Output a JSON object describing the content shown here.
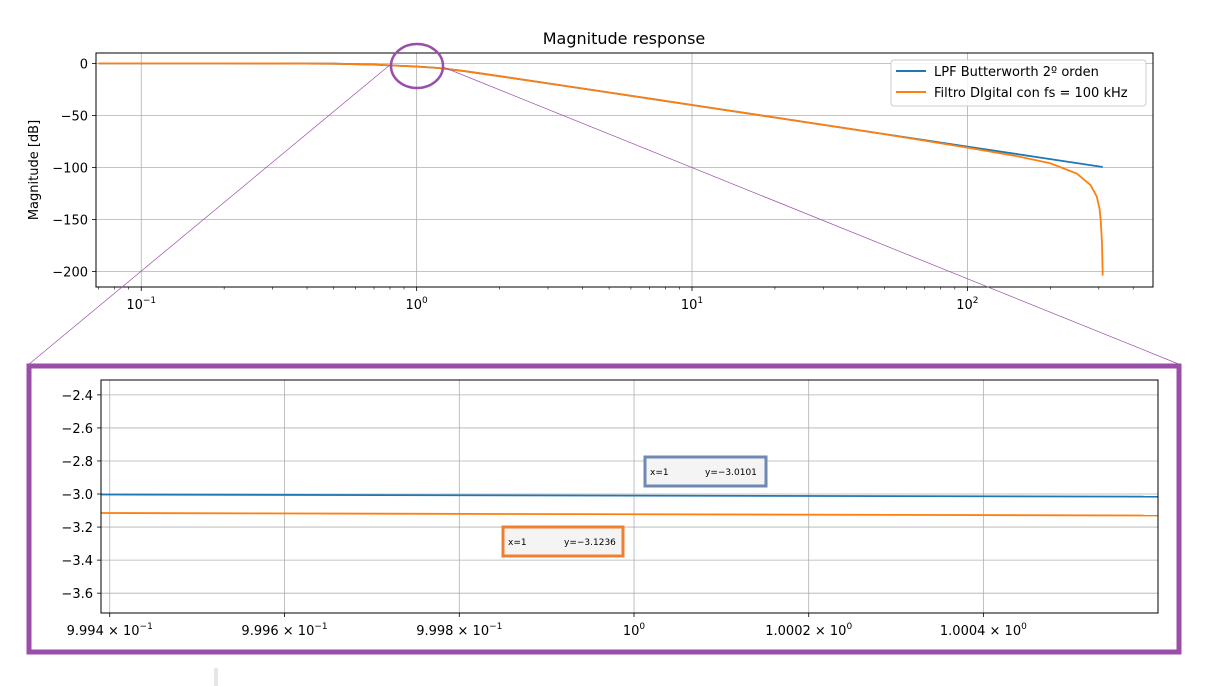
{
  "chart_data": [
    {
      "type": "line",
      "title": "Magnitude response",
      "xlabel": "",
      "ylabel": "Magnitude [dB]",
      "x_scale": "log",
      "xlim": [
        0.0685,
        472
      ],
      "ylim": [
        -215,
        10
      ],
      "grid": true,
      "legend_position": "top-right",
      "x_ticks": [
        {
          "value": 0.1,
          "base": "10",
          "exp": "−1"
        },
        {
          "value": 1,
          "base": "10",
          "exp": "0"
        },
        {
          "value": 10,
          "base": "10",
          "exp": "1"
        },
        {
          "value": 100,
          "base": "10",
          "exp": "2"
        }
      ],
      "y_ticks": [
        {
          "value": 0,
          "label": "0"
        },
        {
          "value": -50,
          "label": "−50"
        },
        {
          "value": -100,
          "label": "−100"
        },
        {
          "value": -150,
          "label": "−150"
        },
        {
          "value": -200,
          "label": "−200"
        }
      ],
      "series": [
        {
          "name": "LPF Butterworth 2º orden",
          "color": "#1f77b4",
          "x": [
            0.07,
            0.1,
            0.2,
            0.3,
            0.5,
            0.7,
            0.8,
            1,
            1.2,
            1.5,
            2,
            3,
            5,
            7,
            10,
            20,
            50,
            100,
            200,
            310
          ],
          "y": [
            0,
            0,
            -0.01,
            -0.03,
            -0.26,
            -1.2,
            -1.9,
            -3.01,
            -4.4,
            -7.5,
            -12.3,
            -19.2,
            -28,
            -33.8,
            -40,
            -52,
            -68,
            -80,
            -92,
            -99.6
          ]
        },
        {
          "name": "Filtro DIgital con fs = 100 kHz",
          "color": "#ff7f0e",
          "x": [
            0.07,
            0.1,
            0.2,
            0.3,
            0.5,
            0.7,
            0.8,
            1,
            1.2,
            1.5,
            2,
            3,
            5,
            7,
            10,
            20,
            50,
            100,
            150,
            200,
            250,
            280,
            295,
            302,
            305,
            308,
            310
          ],
          "y": [
            0,
            0,
            -0.01,
            -0.03,
            -0.26,
            -1.2,
            -1.9,
            -3.12,
            -4.4,
            -7.5,
            -12.3,
            -19.2,
            -28,
            -33.8,
            -40,
            -52,
            -68,
            -81,
            -89,
            -96,
            -106,
            -117,
            -128,
            -140,
            -152,
            -172,
            -204
          ]
        }
      ]
    },
    {
      "type": "line",
      "title": "",
      "xlabel": "",
      "ylabel": "",
      "x_scale": "log",
      "xlim": [
        0.99939,
        1.0006
      ],
      "ylim": [
        -3.72,
        -2.31
      ],
      "grid": true,
      "x_ticks": [
        {
          "value": 0.9994,
          "base": "9.994 × 10",
          "exp": "−1"
        },
        {
          "value": 0.9996,
          "base": "9.996 × 10",
          "exp": "−1"
        },
        {
          "value": 0.9998,
          "base": "9.998 × 10",
          "exp": "−1"
        },
        {
          "value": 1.0,
          "base": "10",
          "exp": "0"
        },
        {
          "value": 1.0002,
          "base": "1.0002 × 10",
          "exp": "0"
        },
        {
          "value": 1.0004,
          "base": "1.0004 × 10",
          "exp": "0"
        }
      ],
      "y_ticks": [
        {
          "value": -2.4,
          "label": "−2.4"
        },
        {
          "value": -2.6,
          "label": "−2.6"
        },
        {
          "value": -2.8,
          "label": "−2.8"
        },
        {
          "value": -3.0,
          "label": "−3.0"
        },
        {
          "value": -3.2,
          "label": "−3.2"
        },
        {
          "value": -3.4,
          "label": "−3.4"
        },
        {
          "value": -3.6,
          "label": "−3.6"
        }
      ],
      "series": [
        {
          "name": "LPF Butterworth 2º orden",
          "color": "#1f77b4",
          "x": [
            0.99939,
            1.0006
          ],
          "y": [
            -3.003,
            -3.016
          ]
        },
        {
          "name": "Filtro DIgital con fs = 100 kHz",
          "color": "#ff7f0e",
          "x": [
            0.99939,
            1.0006
          ],
          "y": [
            -3.115,
            -3.13
          ]
        }
      ],
      "annotations": [
        {
          "id": "blue",
          "x_text": "x=1",
          "y_text": "y=−3.0101",
          "color": "#6d8ab3"
        },
        {
          "id": "orange",
          "x_text": "x=1",
          "y_text": "y=−3.1236",
          "color": "#f08030"
        }
      ]
    }
  ],
  "zoom_color": "#9b4ea9"
}
